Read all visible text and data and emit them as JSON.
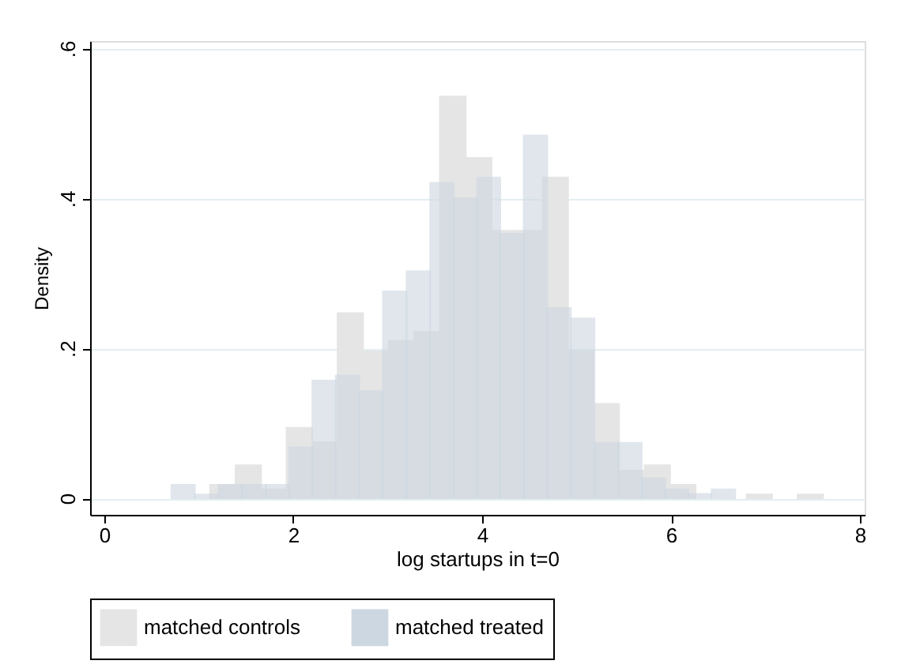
{
  "chart_data": {
    "type": "bar",
    "xlabel": "log startups in t=0",
    "ylabel": "Density",
    "xlim": [
      -0.15,
      8.05
    ],
    "ylim": [
      -0.022,
      0.61
    ],
    "xticks": [
      0,
      2,
      4,
      6,
      8
    ],
    "yticks": [
      {
        "value": 0,
        "label": "0"
      },
      {
        "value": 0.2,
        "label": ".2"
      },
      {
        "value": 0.4,
        "label": ".4"
      },
      {
        "value": 0.6,
        "label": ".6"
      }
    ],
    "grid": "y",
    "legend": "bottom",
    "series": [
      {
        "name": "matched controls",
        "color": "#e5e5e5",
        "x": [
          1.255,
          1.525,
          1.795,
          2.065,
          2.335,
          2.605,
          2.875,
          3.145,
          3.415,
          3.69,
          3.965,
          4.235,
          4.505,
          4.775,
          5.045,
          5.315,
          5.585,
          5.855,
          6.125,
          6.395,
          6.665,
          6.935,
          7.205,
          7.475
        ],
        "values": [
          0.018,
          0.044,
          0.012,
          0.094,
          0.075,
          0.247,
          0.196,
          0.21,
          0.222,
          0.536,
          0.454,
          0.357,
          0.357,
          0.428,
          0.196,
          0.126,
          0.037,
          0.044,
          0.018,
          null,
          null,
          0.005,
          null,
          0.005
        ]
      },
      {
        "name": "matched treated",
        "color": "#cdd7e1",
        "x": [
          0.835,
          1.085,
          1.335,
          1.585,
          1.835,
          2.08,
          2.325,
          2.575,
          2.825,
          3.075,
          3.325,
          3.575,
          3.825,
          4.07,
          4.315,
          4.565,
          4.815,
          5.065,
          5.315,
          5.565,
          5.815,
          6.06,
          6.305,
          6.555
        ],
        "values": [
          0.018,
          0.005,
          0.018,
          0.018,
          0.018,
          0.068,
          0.157,
          0.164,
          0.143,
          0.276,
          0.303,
          0.421,
          0.4,
          0.428,
          0.353,
          0.484,
          0.254,
          0.24,
          0.074,
          0.074,
          0.027,
          0.012,
          0.006,
          0.012
        ]
      }
    ]
  }
}
